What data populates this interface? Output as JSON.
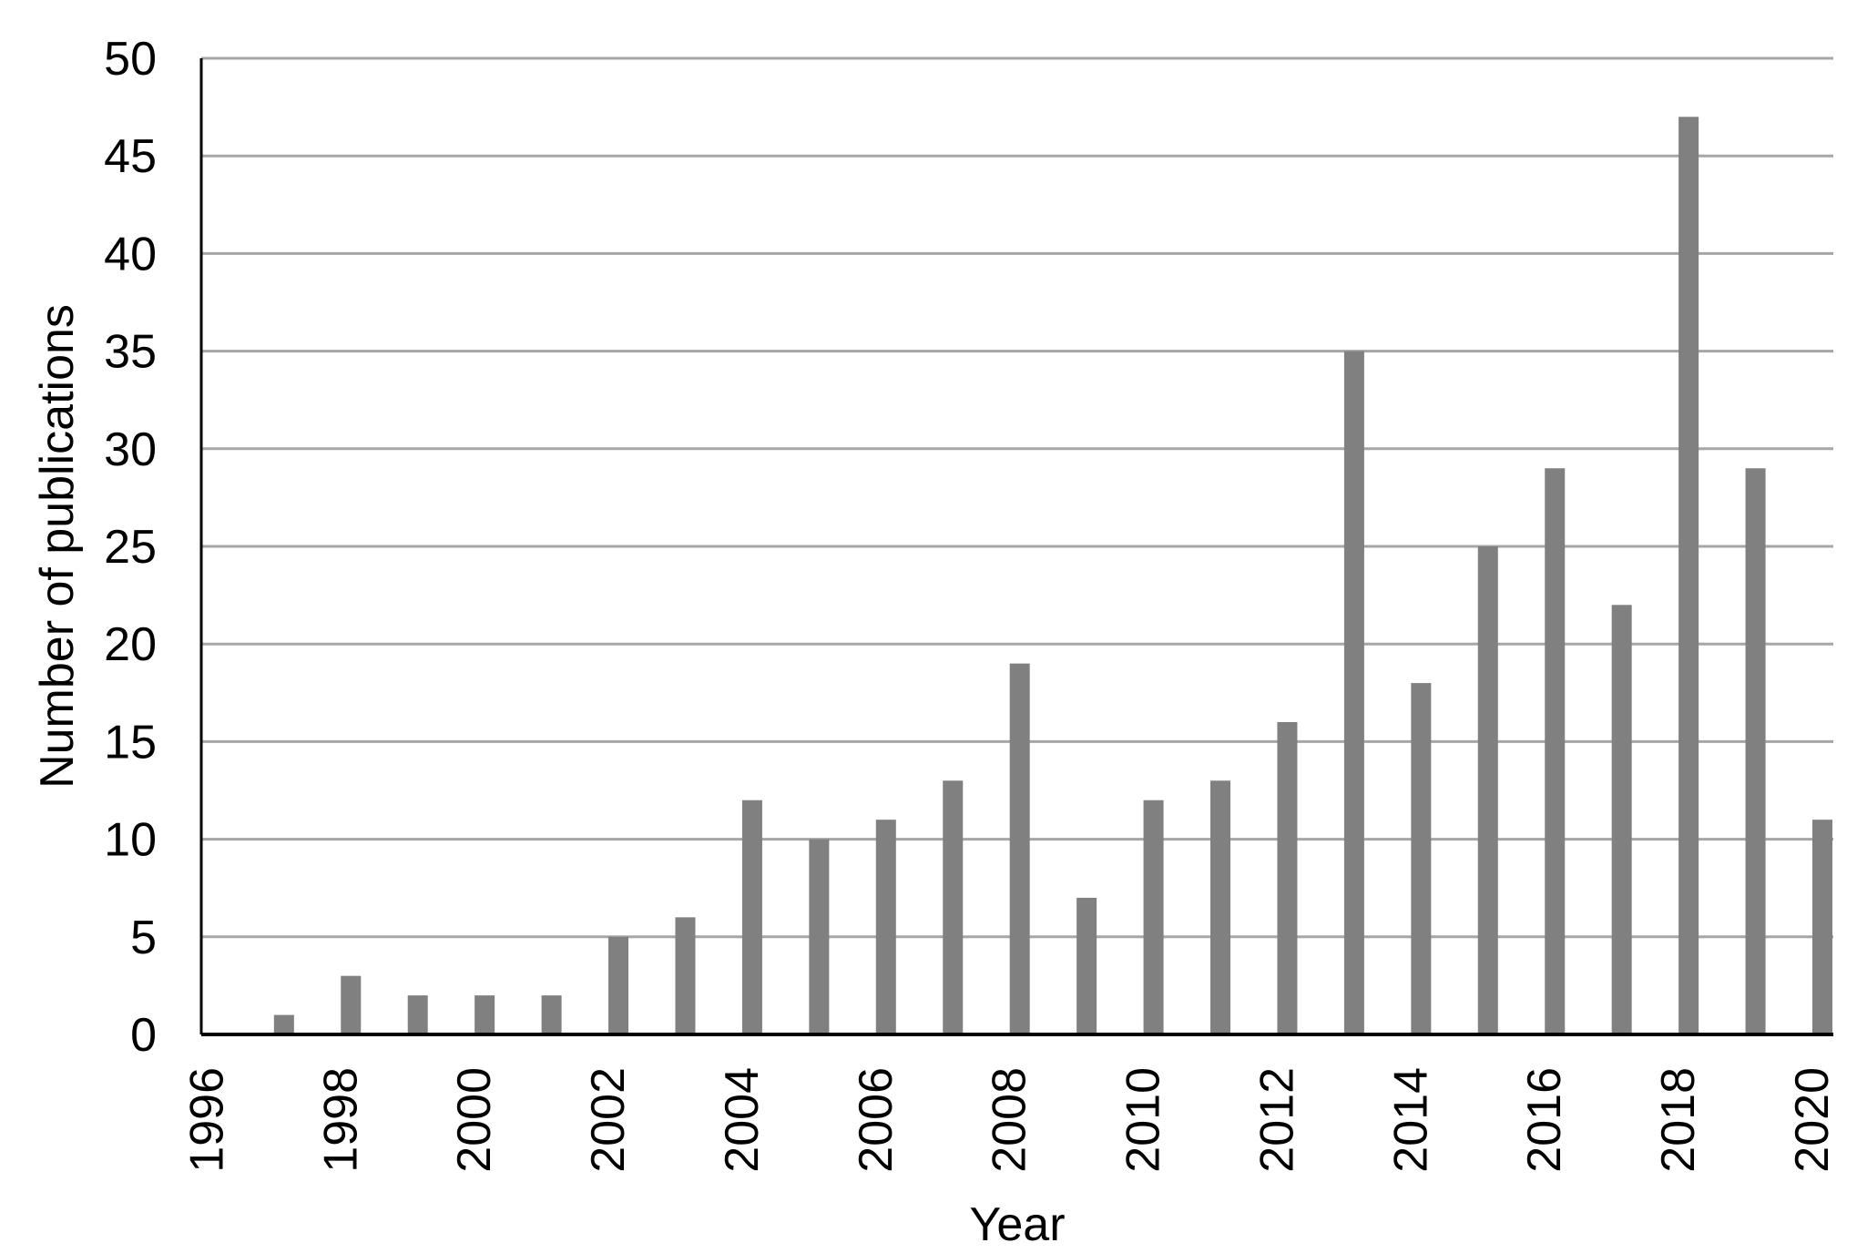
{
  "chart_data": {
    "type": "bar",
    "categories": [
      "1996",
      "1997",
      "1998",
      "1999",
      "2000",
      "2001",
      "2002",
      "2003",
      "2004",
      "2005",
      "2006",
      "2007",
      "2008",
      "2009",
      "2010",
      "2011",
      "2012",
      "2013",
      "2014",
      "2015",
      "2016",
      "2017",
      "2018",
      "2019",
      "2020"
    ],
    "x_tick_labels": [
      "1996",
      "1998",
      "2000",
      "2002",
      "2004",
      "2006",
      "2008",
      "2010",
      "2012",
      "2014",
      "2016",
      "2018",
      "2020"
    ],
    "values": [
      0,
      1,
      3,
      2,
      2,
      2,
      5,
      6,
      12,
      10,
      11,
      13,
      19,
      7,
      12,
      13,
      16,
      35,
      18,
      25,
      29,
      22,
      47,
      29,
      11
    ],
    "y_ticks": [
      0,
      5,
      10,
      15,
      20,
      25,
      30,
      35,
      40,
      45,
      50
    ],
    "ylim": [
      0,
      50
    ],
    "xlabel": "Year",
    "ylabel": "Number of publications",
    "grid": true,
    "legend": "none",
    "bar_color": "#808080",
    "grid_color": "#a6a6a6",
    "axis_color": "#000000"
  }
}
